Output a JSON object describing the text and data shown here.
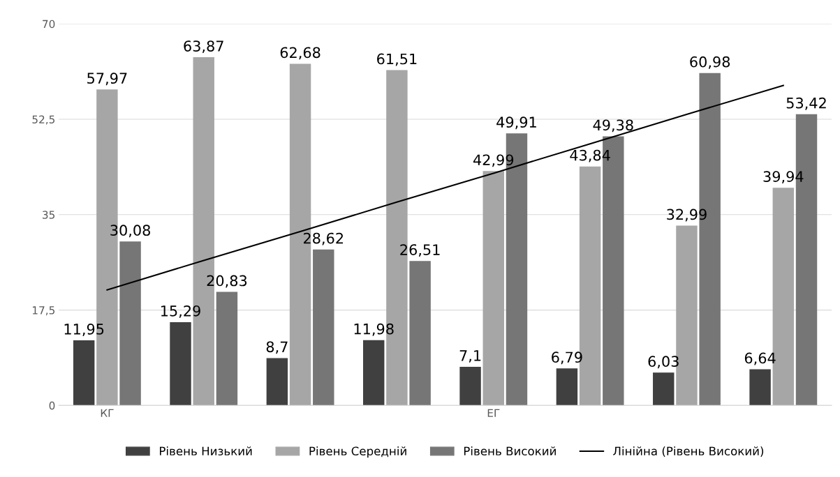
{
  "chart_data": {
    "type": "bar",
    "categories": [
      "КГ",
      null,
      null,
      null,
      "ЕГ",
      null,
      null,
      null
    ],
    "series": [
      {
        "name": "Рівень Низький",
        "color": "#404040",
        "values": [
          11.95,
          15.29,
          8.7,
          11.98,
          7.1,
          6.79,
          6.03,
          6.64
        ],
        "value_labels": [
          "11,95",
          "15,29",
          "8,7",
          "11,98",
          "7,1",
          "6,79",
          "6,03",
          "6,64"
        ]
      },
      {
        "name": "Рівень Середній",
        "color": "#a6a6a6",
        "values": [
          57.97,
          63.87,
          62.68,
          61.51,
          42.99,
          43.84,
          32.99,
          39.94
        ],
        "value_labels": [
          "57,97",
          "63,87",
          "62,68",
          "61,51",
          "42,99",
          "43,84",
          "32,99",
          "39,94"
        ]
      },
      {
        "name": "Рівень Високий",
        "color": "#767676",
        "values": [
          30.08,
          20.83,
          28.62,
          26.51,
          49.91,
          49.38,
          60.98,
          53.42
        ],
        "value_labels": [
          "30,08",
          "20,83",
          "28,62",
          "26,51",
          "49,91",
          "49,38",
          "60,98",
          "53,42"
        ]
      },
      {
        "name": "Лінійна (Рівень Високий)",
        "type": "line",
        "color": "#000000",
        "values": [
          21.2,
          26.6,
          31.9,
          37.3,
          42.6,
          48.0,
          53.4,
          58.7
        ]
      }
    ],
    "ylim": [
      0,
      70
    ],
    "yticks": [
      0,
      {
        "value": 17.5,
        "label": "17,5"
      },
      35,
      {
        "value": 52.5,
        "label": "52,5"
      },
      70
    ],
    "grid": "y",
    "legend": "bottom"
  }
}
